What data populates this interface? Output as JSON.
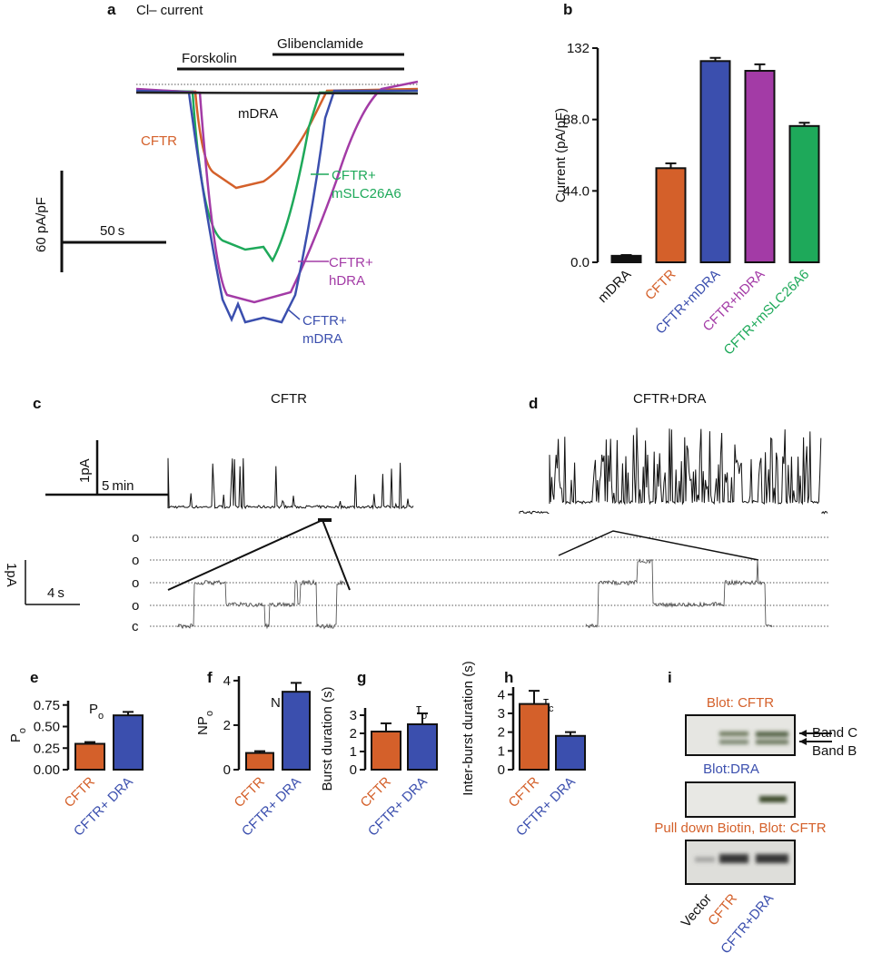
{
  "panel_a": {
    "panel": "a",
    "title": "Cl– current",
    "treatments": [
      "Forskolin",
      "Glibenclamide"
    ],
    "trace_labels": [
      "mDRA",
      "CFTR",
      "CFTR+",
      "mSLC26A6",
      "CFTR+",
      "hDRA",
      "CFTR+",
      "mDRA"
    ],
    "scale_y": "60 pA/pF",
    "scale_x": "50 s"
  },
  "chart_data": [
    {
      "type": "bar",
      "panel": "b",
      "ylabel": "Current (pA/pF)",
      "categories": [
        "mDRA",
        "CFTR",
        "CFTR+mDRA",
        "CFTR+hDRA",
        "CFTR+mSLC26A6"
      ],
      "values": [
        4,
        58,
        124,
        118,
        84
      ],
      "errors": [
        0.5,
        3,
        2,
        4,
        2
      ],
      "colors": [
        "#111111",
        "#d4602a",
        "#3b4fae",
        "#a33ba6",
        "#1ea95a"
      ],
      "ylim": [
        0,
        132
      ],
      "yticks": [
        {
          "value": 0,
          "label": "0.0"
        },
        {
          "value": 44,
          "label": "44.0"
        },
        {
          "value": 88,
          "label": "88.0"
        },
        132
      ]
    },
    {
      "type": "bar",
      "panel": "e",
      "title": "P",
      "title_sub": "o",
      "ylabel": "P",
      "ylabel_sub": "o",
      "categories": [
        "CFTR",
        "CFTR+ DRA"
      ],
      "values": [
        0.3,
        0.63
      ],
      "errors": [
        0.02,
        0.04
      ],
      "colors": [
        "#d4602a",
        "#3b4fae"
      ],
      "ylim": [
        0,
        0.8
      ],
      "yticks": [
        {
          "value": 0,
          "label": "0.00"
        },
        {
          "value": 0.25,
          "label": "0.25"
        },
        {
          "value": 0.5,
          "label": "0.50"
        },
        {
          "value": 0.75,
          "label": "0.75"
        }
      ]
    },
    {
      "type": "bar",
      "panel": "f",
      "title": "NP",
      "title_sub": "o",
      "ylabel": "NP",
      "ylabel_sub": "o",
      "categories": [
        "CFTR",
        "CFTR+ DRA"
      ],
      "values": [
        0.75,
        3.5
      ],
      "errors": [
        0.08,
        0.4
      ],
      "colors": [
        "#d4602a",
        "#3b4fae"
      ],
      "ylim": [
        0,
        4.2
      ],
      "yticks": [
        0,
        2,
        4
      ]
    },
    {
      "type": "bar",
      "panel": "g",
      "title": "τ",
      "title_sub": "o",
      "ylabel": "Burst duration (s)",
      "categories": [
        "CFTR",
        "CFTR+ DRA"
      ],
      "values": [
        2.1,
        2.5
      ],
      "errors": [
        0.45,
        0.6
      ],
      "colors": [
        "#d4602a",
        "#3b4fae"
      ],
      "ylim": [
        0,
        3.4
      ],
      "yticks": [
        0,
        1,
        2,
        3
      ]
    },
    {
      "type": "bar",
      "panel": "h",
      "title": "τ",
      "title_sub": "c",
      "ylabel": "Inter-burst duration (s)",
      "categories": [
        "CFTR",
        "CFTR+ DRA"
      ],
      "values": [
        3.5,
        1.8
      ],
      "errors": [
        0.7,
        0.2
      ],
      "colors": [
        "#d4602a",
        "#3b4fae"
      ],
      "ylim": [
        0,
        4.4
      ],
      "yticks": [
        0,
        1,
        2,
        3,
        4
      ]
    }
  ],
  "panel_c": {
    "panel": "c",
    "title": "CFTR",
    "scale_y": "1pA",
    "scale_x": "5 min",
    "levels": [
      "o",
      "o",
      "o",
      "o",
      "c"
    ],
    "scale2_y": "1pA",
    "scale2_x": "4 s"
  },
  "panel_d": {
    "panel": "d",
    "title": "CFTR+DRA"
  },
  "panel_i": {
    "panel": "i",
    "blots": [
      "Blot: CFTR",
      "Blot:DRA",
      "Pull down Biotin, Blot: CFTR"
    ],
    "bands": [
      "Band C",
      "Band B"
    ],
    "lanes": [
      "Vector",
      "CFTR",
      "CFTR+DRA"
    ]
  }
}
